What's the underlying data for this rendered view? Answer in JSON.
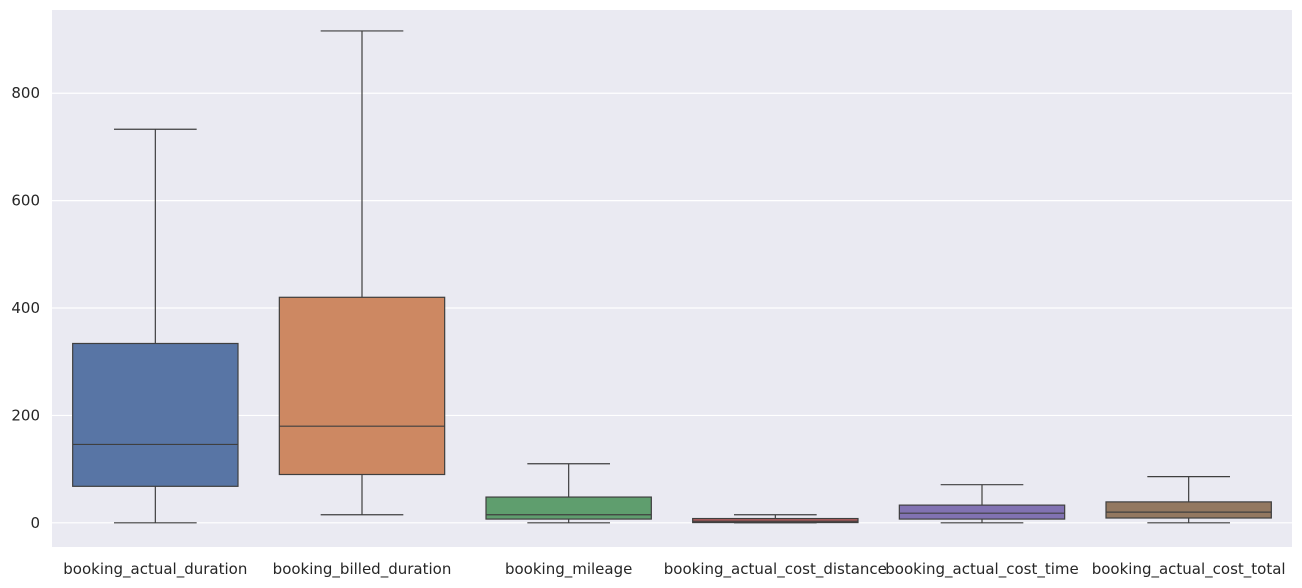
{
  "chart_data": {
    "type": "box",
    "title": "",
    "xlabel": "",
    "ylabel": "",
    "ylim": [
      -45,
      955
    ],
    "yticks": [
      0,
      200,
      400,
      600,
      800
    ],
    "grid": true,
    "legend": "none",
    "colors": [
      "#5875a5",
      "#cd8862",
      "#5f9e6e",
      "#b25d5e",
      "#8172b2",
      "#937860"
    ],
    "background": "#eaeaf2",
    "categories": [
      "booking_actual_duration",
      "booking_billed_duration",
      "booking_mileage",
      "booking_actual_cost_distance",
      "booking_actual_cost_time",
      "booking_actual_cost_total"
    ],
    "boxes": [
      {
        "min": 0,
        "q1": 68,
        "median": 146,
        "q3": 334,
        "max": 733
      },
      {
        "min": 15,
        "q1": 90,
        "median": 180,
        "q3": 420,
        "max": 916
      },
      {
        "min": 0,
        "q1": 7,
        "median": 15,
        "q3": 48,
        "max": 110
      },
      {
        "min": 0,
        "q1": 0.5,
        "median": 3,
        "q3": 8,
        "max": 15
      },
      {
        "min": 0,
        "q1": 7,
        "median": 18,
        "q3": 33,
        "max": 71
      },
      {
        "min": 0,
        "q1": 9,
        "median": 20,
        "q3": 39,
        "max": 86
      }
    ]
  }
}
